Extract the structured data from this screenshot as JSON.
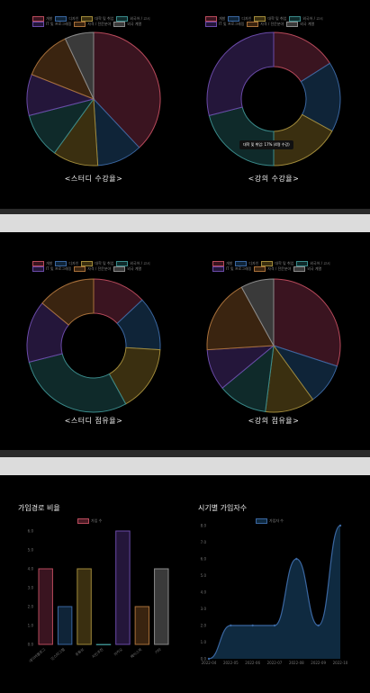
{
  "colors": {
    "red": "#b84a5b",
    "blue": "#3a66a0",
    "olive": "#a08a3a",
    "teal": "#3a8a8a",
    "purple": "#6a4aa8",
    "orange": "#a8703a",
    "gray": "#8a8a8a"
  },
  "legend_top": [
    "개발",
    "디자인",
    "대학 및 취업",
    "외국어 / 고시",
    "IT 및 프로그래밍",
    "자격 / 전문분야",
    "외국 계열"
  ],
  "legend_small": [
    "개발",
    "디자인",
    "대학 및 취업",
    "외국어 / 고시",
    "IT 및 프로그래밍",
    "자격 / 전문분야",
    "외국 계열"
  ],
  "captions": {
    "study_enroll": "<스터디 수강율>",
    "lecture_enroll": "<강의 수강율>",
    "study_share": "<스터디 점유율>",
    "lecture_share": "<강의 점유율>"
  },
  "tooltip": "대학 및 취업: 17% (4명 수강)",
  "signup_title": "가입경로 비율",
  "period_title": "시기별 가입자수",
  "bar_legend": "가입 수",
  "line_legend": "가입자 수",
  "chart_data": [
    {
      "type": "pie",
      "id": "study-enroll",
      "categories": [
        "개발",
        "디자인",
        "대학 및 취업",
        "외국어 / 고시",
        "IT 및 프로그래밍",
        "자격 / 전문분야",
        "외국 계열"
      ],
      "values": [
        38,
        11,
        11,
        11,
        10,
        12,
        7
      ]
    },
    {
      "type": "pie",
      "id": "lecture-enroll",
      "donut": true,
      "categories": [
        "개발",
        "디자인",
        "대학 및 취업",
        "외국어 / 고시",
        "IT 및 프로그래밍",
        "자격 / 전문분야",
        "외국 계열"
      ],
      "values": [
        16,
        17,
        17,
        21,
        29,
        0,
        0
      ]
    },
    {
      "type": "pie",
      "id": "study-share",
      "donut": true,
      "categories": [
        "개발",
        "디자인",
        "대학 및 취업",
        "외국어 / 고시",
        "IT 및 프로그래밍",
        "자격 / 전문분야",
        "외국 계열"
      ],
      "values": [
        13,
        13,
        16,
        29,
        15,
        14,
        0
      ]
    },
    {
      "type": "pie",
      "id": "lecture-share",
      "categories": [
        "개발",
        "디자인",
        "대학 및 취업",
        "외국어 / 고시",
        "IT 및 프로그래밍",
        "자격 / 전문분야",
        "외국 계열"
      ],
      "values": [
        30,
        10,
        12,
        12,
        10,
        18,
        8
      ]
    },
    {
      "type": "bar",
      "id": "signup-path",
      "categories": [
        "네이버블로그",
        "인스타그램",
        "유튜브",
        "지인추천",
        "카카오",
        "페이스북",
        "기타"
      ],
      "values": [
        4,
        2,
        4,
        0,
        6,
        2,
        4
      ],
      "ylim": [
        0,
        6
      ],
      "yticks": [
        "0.0",
        "1.0",
        "2.0",
        "3.0",
        "4.0",
        "5.0",
        "6.0"
      ]
    },
    {
      "type": "area",
      "id": "period-signup",
      "x": [
        "2022-04",
        "2022-05",
        "2022-06",
        "2022-07",
        "2022-08",
        "2022-09",
        "2022-10"
      ],
      "values": [
        0,
        2,
        2,
        2,
        6,
        2,
        8
      ],
      "ylim": [
        0,
        8
      ],
      "yticks": [
        "0.0",
        "1.0",
        "2.0",
        "3.0",
        "4.0",
        "5.0",
        "6.0",
        "7.0",
        "8.0"
      ]
    }
  ]
}
